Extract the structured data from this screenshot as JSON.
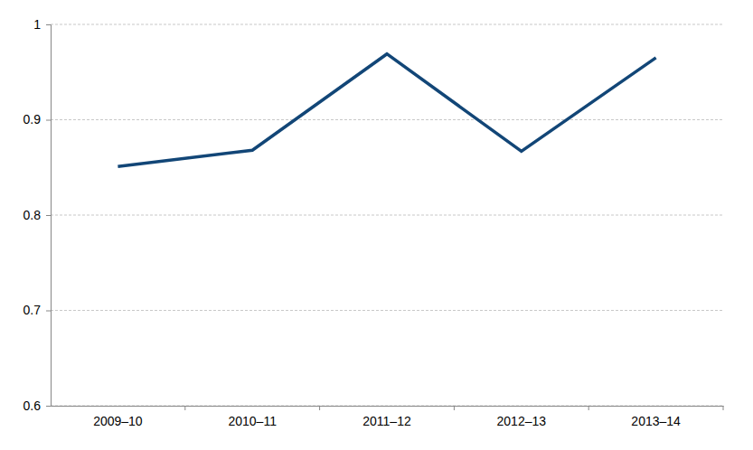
{
  "chart_data": {
    "type": "line",
    "categories": [
      "2009–10",
      "2010–11",
      "2011–12",
      "2012–13",
      "2013–14"
    ],
    "values": [
      0.851,
      0.868,
      0.969,
      0.867,
      0.965
    ],
    "color": "#124677",
    "ylim": [
      0.6,
      1
    ],
    "yticks": [
      0.6,
      0.7,
      0.8,
      0.9,
      1
    ],
    "grid": true
  }
}
